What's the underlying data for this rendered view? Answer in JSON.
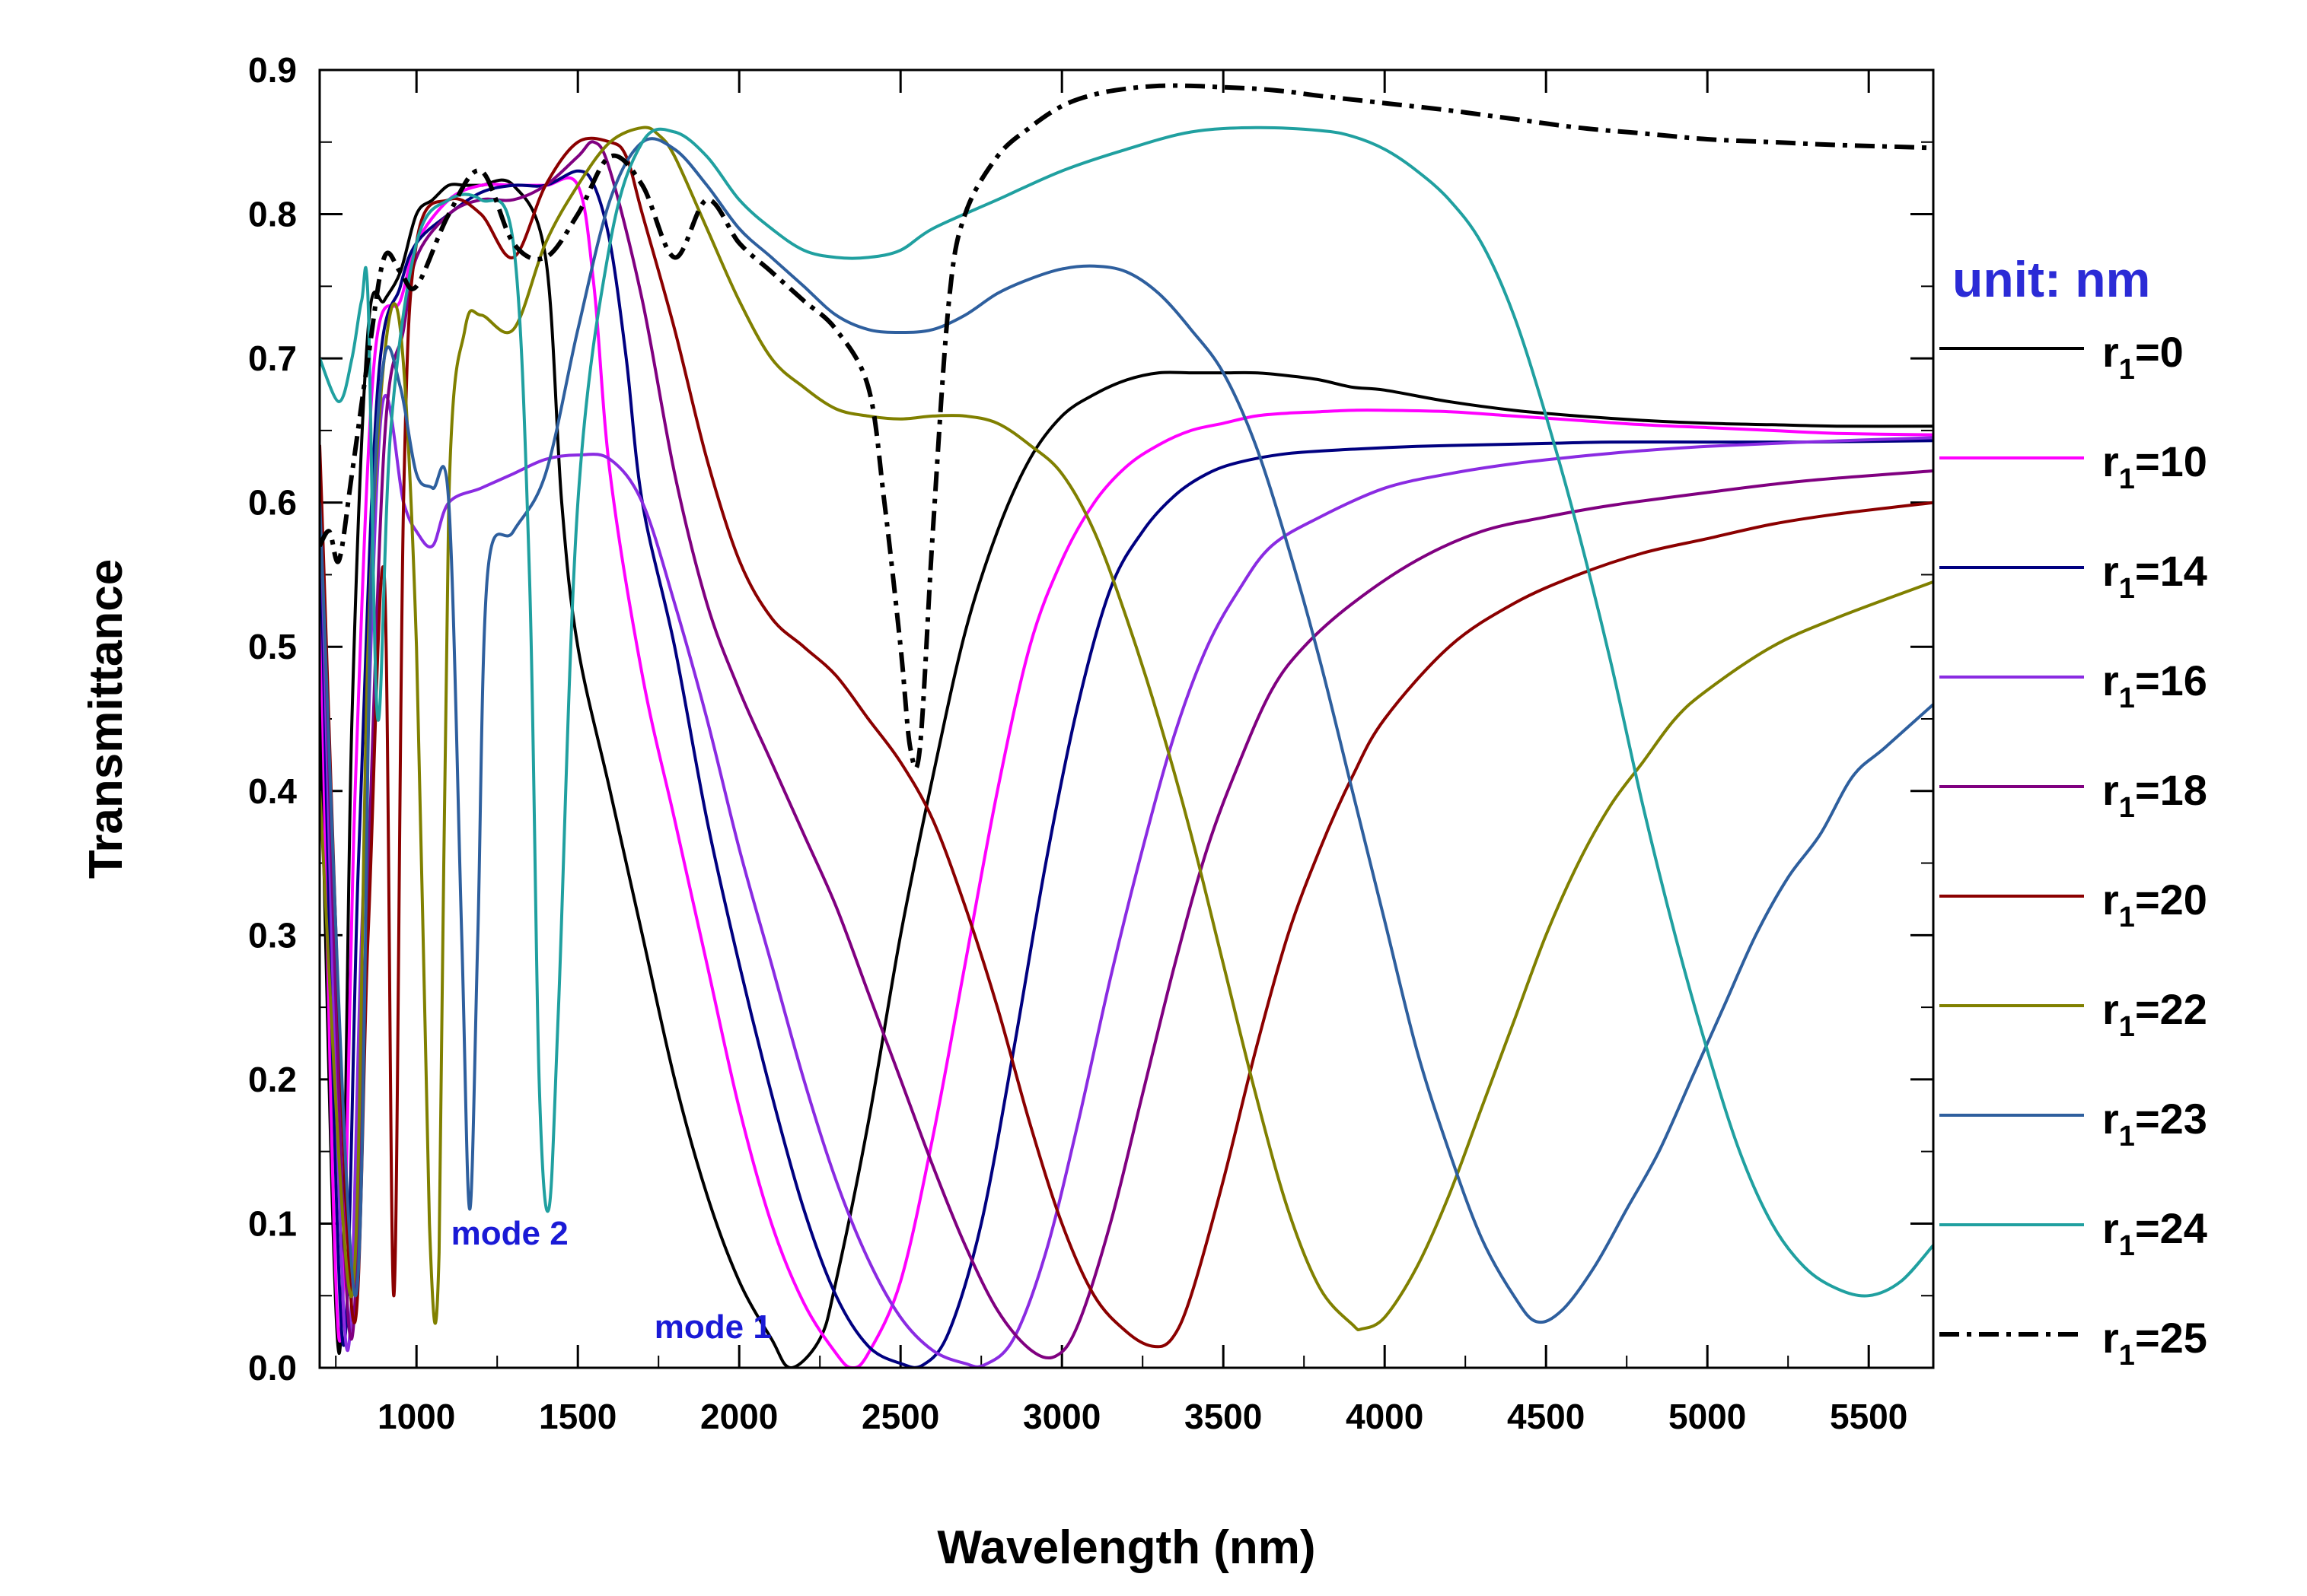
{
  "chart_data": {
    "type": "line",
    "title": "",
    "xlabel": "Wavelength (nm)",
    "ylabel": "Transmittance",
    "xlim": [
      700,
      5700
    ],
    "ylim": [
      0.0,
      0.9
    ],
    "x_ticks": [
      1000,
      1500,
      2000,
      2500,
      3000,
      3500,
      4000,
      4500,
      5000,
      5500
    ],
    "y_ticks": [
      "0.0",
      "0.1",
      "0.2",
      "0.3",
      "0.4",
      "0.5",
      "0.6",
      "0.7",
      "0.8",
      "0.9"
    ],
    "legend_title": "unit: nm",
    "legend_title_color": "#2b2bd6",
    "legend_position": "right",
    "annotations": [
      {
        "text": "mode 2",
        "x": 1060,
        "y": 0.075,
        "color": "#1a1ad6"
      },
      {
        "text": "mode 1",
        "x": 1690,
        "y": 0.01,
        "color": "#1a1ad6"
      }
    ],
    "series": [
      {
        "name": "r1=0",
        "label_main": "r",
        "label_sub": "1",
        "label_rest": "=0",
        "color": "#000000",
        "dash": "solid",
        "x": [
          700,
          760,
          800,
          850,
          900,
          950,
          1000,
          1050,
          1100,
          1150,
          1200,
          1300,
          1400,
          1450,
          1500,
          1600,
          1700,
          1800,
          1900,
          2000,
          2100,
          2160,
          2250,
          2300,
          2400,
          2500,
          2600,
          2700,
          2800,
          2900,
          3000,
          3100,
          3200,
          3300,
          3400,
          3500,
          3600,
          3700,
          3800,
          3900,
          4000,
          4200,
          4400,
          4600,
          4800,
          5000,
          5200,
          5400,
          5700
        ],
        "y": [
          0.47,
          0.01,
          0.45,
          0.72,
          0.74,
          0.76,
          0.8,
          0.81,
          0.82,
          0.82,
          0.82,
          0.82,
          0.77,
          0.6,
          0.5,
          0.4,
          0.3,
          0.2,
          0.12,
          0.06,
          0.02,
          0.0,
          0.02,
          0.06,
          0.17,
          0.3,
          0.41,
          0.51,
          0.58,
          0.63,
          0.66,
          0.675,
          0.685,
          0.69,
          0.69,
          0.69,
          0.69,
          0.688,
          0.685,
          0.68,
          0.678,
          0.67,
          0.664,
          0.66,
          0.657,
          0.655,
          0.654,
          0.653,
          0.653
        ]
      },
      {
        "name": "r1=10",
        "label_main": "r",
        "label_sub": "1",
        "label_rest": "=10",
        "color": "#ff00ff",
        "dash": "solid",
        "x": [
          700,
          760,
          810,
          870,
          950,
          1000,
          1100,
          1200,
          1300,
          1400,
          1500,
          1550,
          1600,
          1700,
          1800,
          1900,
          2000,
          2100,
          2200,
          2300,
          2350,
          2400,
          2500,
          2600,
          2700,
          2800,
          2900,
          3000,
          3100,
          3200,
          3300,
          3400,
          3500,
          3600,
          3700,
          3800,
          3900,
          4000,
          4200,
          4400,
          4600,
          4800,
          5000,
          5200,
          5400,
          5700
        ],
        "y": [
          0.55,
          0.02,
          0.4,
          0.7,
          0.74,
          0.78,
          0.81,
          0.82,
          0.82,
          0.82,
          0.82,
          0.75,
          0.62,
          0.48,
          0.38,
          0.28,
          0.18,
          0.1,
          0.045,
          0.01,
          0.0,
          0.01,
          0.06,
          0.16,
          0.28,
          0.4,
          0.5,
          0.56,
          0.6,
          0.625,
          0.64,
          0.65,
          0.655,
          0.66,
          0.662,
          0.663,
          0.664,
          0.664,
          0.663,
          0.66,
          0.657,
          0.654,
          0.652,
          0.65,
          0.648,
          0.647
        ]
      },
      {
        "name": "r1=14",
        "label_main": "r",
        "label_sub": "1",
        "label_rest": "=14",
        "color": "#000080",
        "dash": "solid",
        "x": [
          700,
          770,
          820,
          880,
          950,
          1000,
          1100,
          1200,
          1300,
          1400,
          1500,
          1550,
          1600,
          1650,
          1700,
          1800,
          1900,
          2000,
          2100,
          2200,
          2300,
          2400,
          2500,
          2570,
          2650,
          2750,
          2850,
          2950,
          3050,
          3150,
          3250,
          3350,
          3450,
          3550,
          3700,
          3900,
          4100,
          4300,
          4500,
          4700,
          5000,
          5300,
          5700
        ],
        "y": [
          0.6,
          0.02,
          0.35,
          0.68,
          0.75,
          0.78,
          0.8,
          0.815,
          0.82,
          0.82,
          0.83,
          0.82,
          0.78,
          0.7,
          0.6,
          0.5,
          0.38,
          0.28,
          0.19,
          0.11,
          0.05,
          0.015,
          0.003,
          0.002,
          0.025,
          0.1,
          0.22,
          0.35,
          0.46,
          0.54,
          0.58,
          0.605,
          0.62,
          0.628,
          0.634,
          0.637,
          0.639,
          0.64,
          0.641,
          0.642,
          0.642,
          0.642,
          0.643
        ]
      },
      {
        "name": "r1=16",
        "label_main": "r",
        "label_sub": "1",
        "label_rest": "=16",
        "color": "#8a2be2",
        "dash": "solid",
        "x": [
          700,
          780,
          830,
          890,
          960,
          1000,
          1050,
          1100,
          1200,
          1300,
          1400,
          1500,
          1600,
          1700,
          1800,
          1900,
          2000,
          2100,
          2200,
          2300,
          2400,
          2500,
          2600,
          2700,
          2760,
          2850,
          2950,
          3050,
          3150,
          3250,
          3350,
          3450,
          3550,
          3650,
          3800,
          4000,
          4200,
          4400,
          4600,
          4800,
          5000,
          5300,
          5700
        ],
        "y": [
          0.62,
          0.02,
          0.3,
          0.66,
          0.6,
          0.58,
          0.57,
          0.6,
          0.61,
          0.62,
          0.63,
          0.633,
          0.63,
          0.6,
          0.53,
          0.45,
          0.36,
          0.28,
          0.2,
          0.13,
          0.075,
          0.035,
          0.012,
          0.003,
          0.002,
          0.02,
          0.08,
          0.17,
          0.27,
          0.36,
          0.44,
          0.5,
          0.54,
          0.57,
          0.59,
          0.61,
          0.62,
          0.627,
          0.632,
          0.636,
          0.639,
          0.642,
          0.645
        ]
      },
      {
        "name": "r1=18",
        "label_main": "r",
        "label_sub": "1",
        "label_rest": "=18",
        "color": "#800080",
        "dash": "solid",
        "x": [
          700,
          790,
          840,
          900,
          960,
          1000,
          1100,
          1200,
          1300,
          1400,
          1500,
          1550,
          1600,
          1700,
          1800,
          1900,
          2000,
          2100,
          2200,
          2300,
          2400,
          2500,
          2600,
          2700,
          2800,
          2900,
          2980,
          3050,
          3150,
          3250,
          3350,
          3450,
          3550,
          3650,
          3750,
          3900,
          4100,
          4300,
          4500,
          4700,
          5000,
          5300,
          5700
        ],
        "y": [
          0.63,
          0.03,
          0.28,
          0.64,
          0.72,
          0.77,
          0.8,
          0.81,
          0.81,
          0.82,
          0.84,
          0.85,
          0.83,
          0.74,
          0.62,
          0.53,
          0.47,
          0.42,
          0.37,
          0.32,
          0.26,
          0.2,
          0.14,
          0.085,
          0.04,
          0.013,
          0.008,
          0.03,
          0.1,
          0.19,
          0.28,
          0.36,
          0.42,
          0.47,
          0.5,
          0.53,
          0.56,
          0.58,
          0.59,
          0.598,
          0.607,
          0.615,
          0.622
        ]
      },
      {
        "name": "r1=20",
        "label_main": "r",
        "label_sub": "1",
        "label_rest": "=20",
        "color": "#8b0000",
        "dash": "solid",
        "x": [
          700,
          800,
          850,
          900,
          930,
          960,
          1000,
          1100,
          1200,
          1300,
          1400,
          1500,
          1600,
          1650,
          1700,
          1800,
          1900,
          2000,
          2100,
          2200,
          2300,
          2400,
          2500,
          2600,
          2700,
          2800,
          2900,
          3000,
          3100,
          3200,
          3280,
          3340,
          3400,
          3500,
          3600,
          3700,
          3800,
          3900,
          4000,
          4200,
          4400,
          4600,
          4800,
          5000,
          5200,
          5400,
          5700
        ],
        "y": [
          0.64,
          0.04,
          0.3,
          0.55,
          0.05,
          0.6,
          0.78,
          0.81,
          0.8,
          0.77,
          0.82,
          0.85,
          0.85,
          0.84,
          0.8,
          0.72,
          0.63,
          0.56,
          0.52,
          0.5,
          0.48,
          0.45,
          0.42,
          0.38,
          0.32,
          0.25,
          0.17,
          0.1,
          0.05,
          0.025,
          0.015,
          0.02,
          0.05,
          0.13,
          0.22,
          0.3,
          0.36,
          0.41,
          0.45,
          0.5,
          0.53,
          0.55,
          0.565,
          0.575,
          0.585,
          0.592,
          0.6
        ]
      },
      {
        "name": "r1=22",
        "label_main": "r",
        "label_sub": "1",
        "label_rest": "=22",
        "color": "#808000",
        "dash": "solid",
        "x": [
          700,
          800,
          850,
          900,
          950,
          1000,
          1040,
          1070,
          1100,
          1150,
          1200,
          1300,
          1400,
          1500,
          1600,
          1700,
          1750,
          1800,
          1900,
          2000,
          2100,
          2200,
          2300,
          2400,
          2500,
          2600,
          2700,
          2800,
          2900,
          3000,
          3100,
          3200,
          3300,
          3400,
          3500,
          3600,
          3700,
          3800,
          3900,
          3930,
          4000,
          4100,
          4200,
          4300,
          4400,
          4500,
          4600,
          4700,
          4800,
          4900,
          5000,
          5200,
          5400,
          5700
        ],
        "y": [
          0.4,
          0.05,
          0.5,
          0.7,
          0.72,
          0.5,
          0.1,
          0.08,
          0.6,
          0.72,
          0.73,
          0.72,
          0.78,
          0.82,
          0.85,
          0.86,
          0.855,
          0.84,
          0.79,
          0.74,
          0.7,
          0.68,
          0.665,
          0.66,
          0.658,
          0.66,
          0.66,
          0.655,
          0.64,
          0.62,
          0.58,
          0.52,
          0.45,
          0.37,
          0.28,
          0.19,
          0.11,
          0.055,
          0.03,
          0.027,
          0.035,
          0.07,
          0.12,
          0.18,
          0.24,
          0.3,
          0.35,
          0.39,
          0.42,
          0.45,
          0.47,
          0.5,
          0.52,
          0.545
        ]
      },
      {
        "name": "r1=23",
        "label_main": "r",
        "label_sub": "1",
        "label_rest": "=23",
        "color": "#2e5f9e",
        "dash": "solid",
        "x": [
          700,
          810,
          860,
          900,
          950,
          1000,
          1050,
          1100,
          1140,
          1165,
          1190,
          1220,
          1300,
          1400,
          1500,
          1600,
          1700,
          1800,
          1900,
          2000,
          2100,
          2200,
          2300,
          2400,
          2500,
          2600,
          2700,
          2800,
          2900,
          3000,
          3100,
          3200,
          3300,
          3400,
          3500,
          3600,
          3700,
          3800,
          3900,
          4000,
          4100,
          4200,
          4300,
          4400,
          4470,
          4550,
          4650,
          4750,
          4850,
          4950,
          5050,
          5150,
          5250,
          5350,
          5450,
          5550,
          5700
        ],
        "y": [
          0.6,
          0.05,
          0.55,
          0.7,
          0.68,
          0.62,
          0.61,
          0.6,
          0.3,
          0.11,
          0.3,
          0.55,
          0.58,
          0.62,
          0.72,
          0.81,
          0.85,
          0.845,
          0.82,
          0.79,
          0.77,
          0.75,
          0.73,
          0.72,
          0.718,
          0.72,
          0.73,
          0.745,
          0.755,
          0.762,
          0.764,
          0.76,
          0.745,
          0.72,
          0.69,
          0.64,
          0.57,
          0.49,
          0.4,
          0.31,
          0.22,
          0.15,
          0.09,
          0.05,
          0.032,
          0.04,
          0.07,
          0.11,
          0.15,
          0.2,
          0.25,
          0.3,
          0.34,
          0.37,
          0.41,
          0.43,
          0.46
        ]
      },
      {
        "name": "r1=24",
        "label_main": "r",
        "label_sub": "1",
        "label_rest": "=24",
        "color": "#20a0a0",
        "dash": "solid",
        "x": [
          700,
          760,
          800,
          830,
          850,
          880,
          920,
          1000,
          1100,
          1200,
          1300,
          1350,
          1380,
          1410,
          1440,
          1500,
          1600,
          1700,
          1800,
          1900,
          2000,
          2100,
          2200,
          2300,
          2400,
          2500,
          2600,
          2800,
          3000,
          3200,
          3400,
          3600,
          3800,
          3900,
          4000,
          4100,
          4200,
          4300,
          4400,
          4500,
          4600,
          4700,
          4800,
          4900,
          5000,
          5100,
          5200,
          5300,
          5400,
          5500,
          5600,
          5700
        ],
        "y": [
          0.7,
          0.67,
          0.7,
          0.74,
          0.74,
          0.45,
          0.65,
          0.78,
          0.81,
          0.81,
          0.78,
          0.55,
          0.2,
          0.11,
          0.25,
          0.6,
          0.78,
          0.85,
          0.857,
          0.84,
          0.81,
          0.79,
          0.775,
          0.77,
          0.77,
          0.775,
          0.79,
          0.81,
          0.83,
          0.845,
          0.857,
          0.86,
          0.858,
          0.854,
          0.845,
          0.83,
          0.81,
          0.78,
          0.73,
          0.66,
          0.58,
          0.49,
          0.39,
          0.3,
          0.22,
          0.15,
          0.1,
          0.07,
          0.055,
          0.05,
          0.06,
          0.085
        ]
      },
      {
        "name": "r1=25",
        "label_main": "r",
        "label_sub": "1",
        "label_rest": "=25",
        "color": "#000000",
        "dash": "dashdot",
        "x": [
          700,
          730,
          760,
          800,
          850,
          900,
          950,
          1000,
          1100,
          1200,
          1300,
          1400,
          1500,
          1600,
          1700,
          1800,
          1900,
          2000,
          2100,
          2200,
          2300,
          2400,
          2450,
          2500,
          2530,
          2560,
          2600,
          2650,
          2700,
          2800,
          2900,
          3000,
          3100,
          3200,
          3300,
          3400,
          3500,
          3600,
          3700,
          3800,
          4000,
          4200,
          4400,
          4600,
          4800,
          5000,
          5200,
          5400,
          5700
        ],
        "y": [
          0.57,
          0.58,
          0.56,
          0.62,
          0.7,
          0.77,
          0.76,
          0.75,
          0.8,
          0.83,
          0.78,
          0.77,
          0.8,
          0.84,
          0.82,
          0.77,
          0.81,
          0.78,
          0.76,
          0.74,
          0.72,
          0.68,
          0.6,
          0.5,
          0.43,
          0.43,
          0.58,
          0.74,
          0.8,
          0.84,
          0.86,
          0.875,
          0.883,
          0.887,
          0.889,
          0.889,
          0.888,
          0.887,
          0.885,
          0.882,
          0.877,
          0.872,
          0.866,
          0.86,
          0.856,
          0.852,
          0.85,
          0.848,
          0.846
        ]
      }
    ]
  }
}
